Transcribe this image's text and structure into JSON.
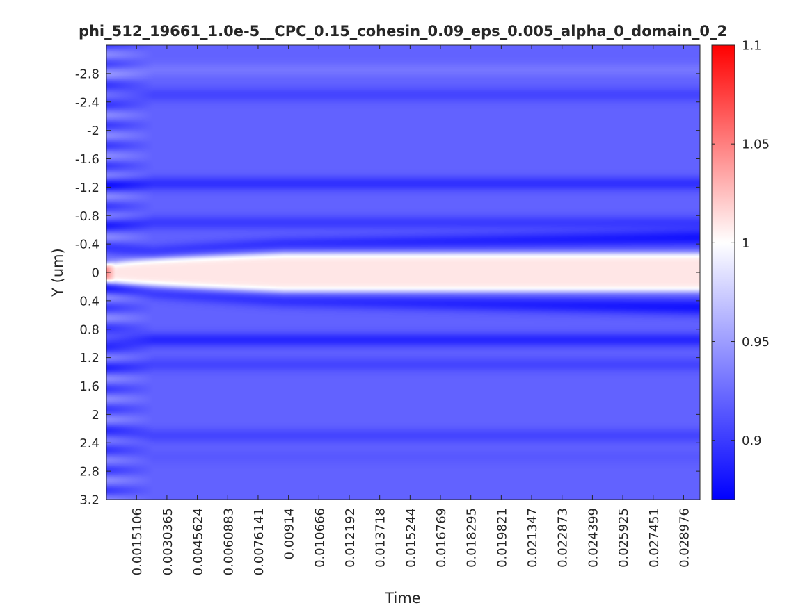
{
  "chart_data": {
    "type": "heatmap",
    "title": "phi_512_19661_1.0e-5__CPC_0.15_cohesin_0.09_eps_0.005_alpha_0_domain_0_2",
    "xlabel": "Time",
    "ylabel": "Y (um)",
    "x_tick_labels": [
      "0.0015106",
      "0.0030365",
      "0.0045624",
      "0.0060883",
      "0.0076141",
      "0.00914",
      "0.010666",
      "0.012192",
      "0.013718",
      "0.015244",
      "0.016769",
      "0.018295",
      "0.019821",
      "0.021347",
      "0.022873",
      "0.024399",
      "0.025925",
      "0.027451",
      "0.028976"
    ],
    "x_ticks": [
      0.0015106,
      0.0030365,
      0.0045624,
      0.0060883,
      0.0076141,
      0.00914,
      0.010666,
      0.012192,
      0.013718,
      0.015244,
      0.016769,
      0.018295,
      0.019821,
      0.021347,
      0.022873,
      0.024399,
      0.025925,
      0.027451,
      0.028976
    ],
    "xlim": [
      0.0,
      0.0298
    ],
    "y_tick_labels": [
      "-2.8",
      "-2.4",
      "-2",
      "-1.6",
      "-1.2",
      "-0.8",
      "-0.4",
      "0",
      "0.4",
      "0.8",
      "1.2",
      "1.6",
      "2",
      "2.4",
      "2.8",
      "3.2"
    ],
    "y_ticks": [
      -2.8,
      -2.4,
      -2.0,
      -1.6,
      -1.2,
      -0.8,
      -0.4,
      0.0,
      0.4,
      0.8,
      1.2,
      1.6,
      2.0,
      2.4,
      2.8,
      3.2
    ],
    "ylim": [
      -3.2,
      3.2
    ],
    "y_reversed": true,
    "colorbar": {
      "range": [
        0.87,
        1.1
      ],
      "tick_labels": [
        "0.9",
        "0.95",
        "1",
        "1.05",
        "1.1"
      ],
      "ticks": [
        0.9,
        0.95,
        1.0,
        1.05,
        1.1
      ],
      "colormap": "blue-white-red",
      "colors": [
        "#0000ff",
        "#ffffff",
        "#ff0000"
      ]
    },
    "grid": false,
    "field_profile": {
      "center_plateau": 1.01,
      "center_halfwidth_final": 0.27,
      "center_halfwidth_initial": 0.12,
      "trough_value": 0.88,
      "background_value": 0.92,
      "stripes": [
        {
          "y": -2.85,
          "value": 0.93
        },
        {
          "y": -2.5,
          "value": 0.905
        },
        {
          "y": -1.25,
          "value": 0.895
        },
        {
          "y": -0.7,
          "value": 0.9
        },
        {
          "y": 0.95,
          "value": 0.89
        },
        {
          "y": 1.3,
          "value": 0.905
        },
        {
          "y": 2.3,
          "value": 0.905
        },
        {
          "y": 2.6,
          "value": 0.915
        },
        {
          "y": 3.05,
          "value": 0.92
        }
      ]
    }
  }
}
